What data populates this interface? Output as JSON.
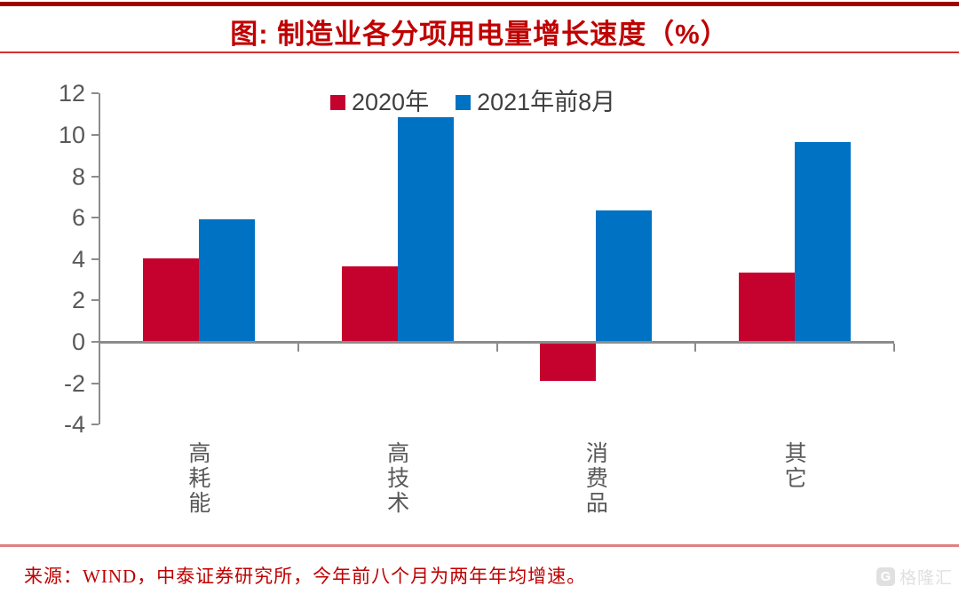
{
  "page": {
    "title": "图: 制造业各分项用电量增长速度（%）",
    "source_note": "来源：WIND，中泰证券研究所，今年前八个月为两年年均增速。",
    "watermark_logo": "G",
    "watermark_text": "格隆汇"
  },
  "colors": {
    "top_band": "#A00000",
    "title_red": "#C00000",
    "title_rule": "#D0342C",
    "footer_rule": "#DE8181",
    "axis_gray": "#8C8C8C",
    "tick_label_gray": "#595959",
    "legend_text": "#404040",
    "series_2020_red": "#C5022E",
    "series_2021_blue": "#0072C4",
    "watermark_gray": "#E0E0E0"
  },
  "chart_data": {
    "type": "bar",
    "title": "图: 制造业各分项用电量增长速度（%）",
    "xlabel": "",
    "ylabel": "",
    "categories": [
      "高耗能",
      "高技术",
      "消费品",
      "其它"
    ],
    "series": [
      {
        "name": "2020年",
        "color": "#C5022E",
        "values": [
          4.0,
          3.6,
          -1.8,
          3.3
        ]
      },
      {
        "name": "2021年前8月",
        "color": "#0072C4",
        "values": [
          5.9,
          10.8,
          6.3,
          9.6
        ]
      }
    ],
    "ylim": [
      -4,
      12
    ],
    "yticks": [
      12,
      10,
      8,
      6,
      4,
      2,
      0,
      -2,
      -4
    ],
    "grid": false,
    "legend_position": "top-center"
  }
}
